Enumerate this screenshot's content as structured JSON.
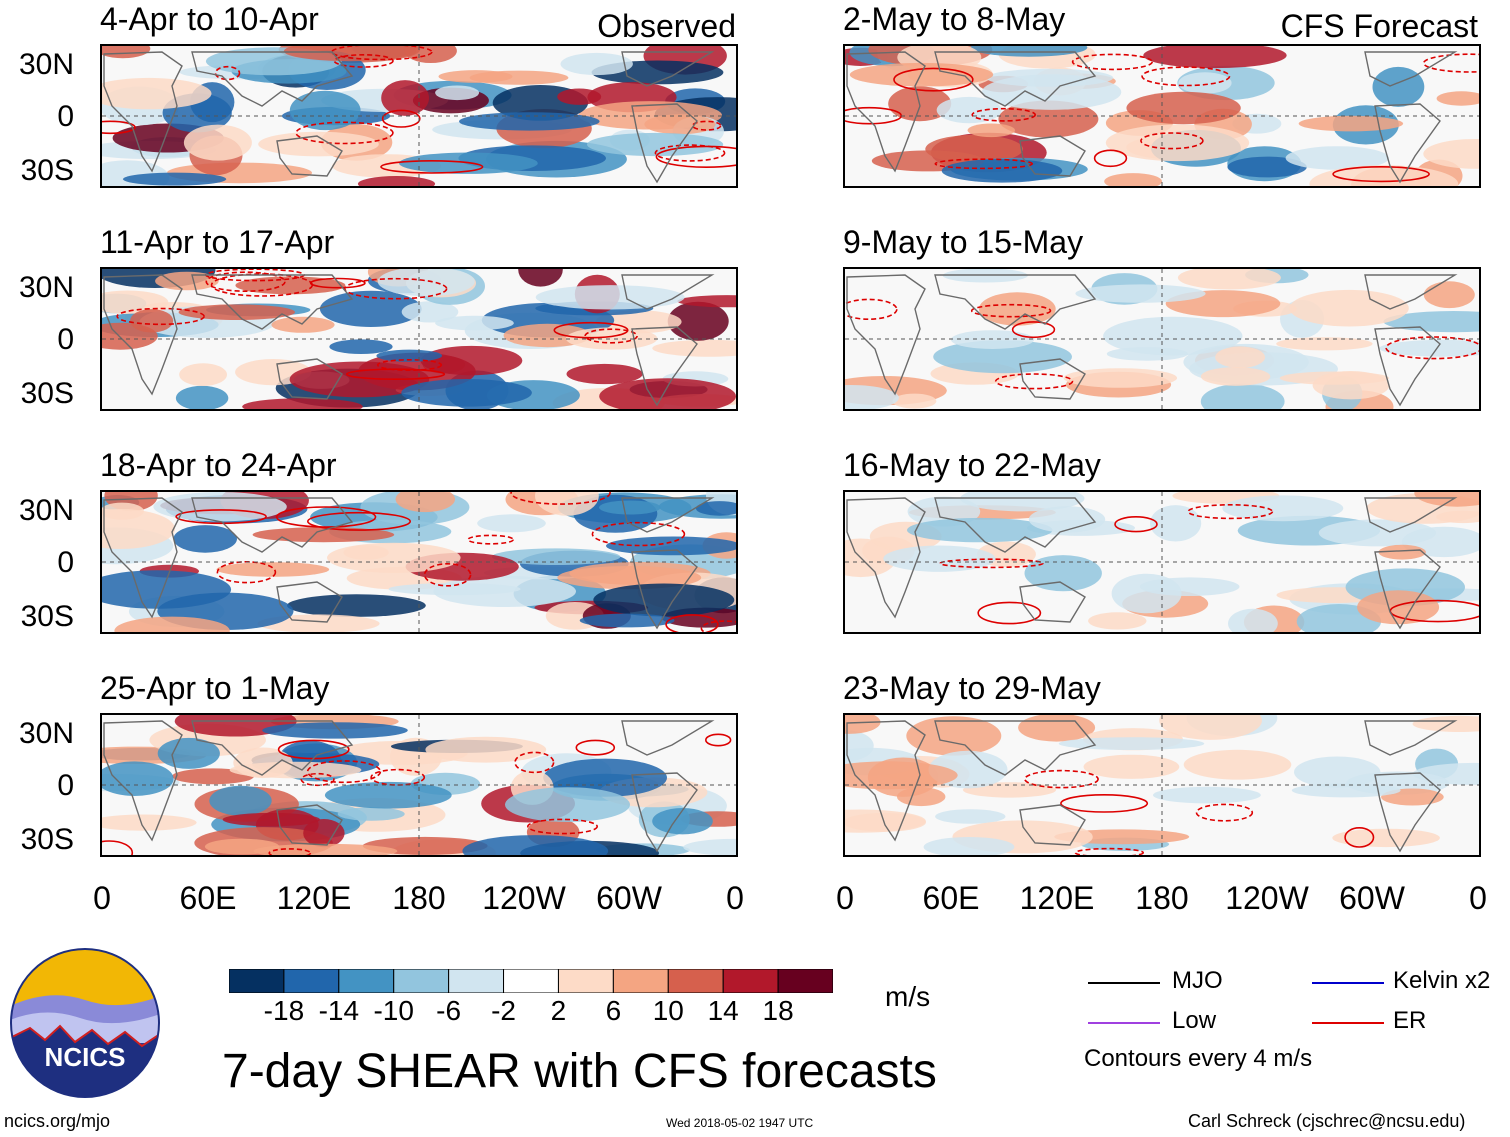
{
  "chart_data": {
    "type": "heatmap",
    "title": "7-day SHEAR with CFS forecasts",
    "units": "m/s",
    "column_labels": [
      "Observed",
      "CFS Forecast"
    ],
    "observed_periods": [
      "4-Apr to 10-Apr",
      "11-Apr to 17-Apr",
      "18-Apr to 24-Apr",
      "25-Apr to 1-May"
    ],
    "forecast_periods": [
      "2-May to 8-May",
      "9-May to 15-May",
      "16-May to 22-May",
      "23-May to 29-May"
    ],
    "lat_ticks": [
      "30N",
      "0",
      "30S"
    ],
    "lon_ticks": [
      "0",
      "60E",
      "120E",
      "180",
      "120W",
      "60W",
      "0"
    ],
    "colorbar": {
      "ticks": [
        "-18",
        "-14",
        "-10",
        "-6",
        "-2",
        "2",
        "6",
        "10",
        "14",
        "18"
      ],
      "colors": [
        "#053061",
        "#2166ac",
        "#4393c3",
        "#92c5de",
        "#d1e5f0",
        "#ffffff",
        "#fddbc7",
        "#f4a582",
        "#d6604d",
        "#b2182b",
        "#67001f"
      ]
    },
    "legend": [
      {
        "label": "MJO",
        "color": "#000000"
      },
      {
        "label": "Kelvin x2",
        "color": "#0000cc"
      },
      {
        "label": "Low",
        "color": "#a040e0"
      },
      {
        "label": "ER",
        "color": "#dd0000"
      }
    ],
    "contour_note": "Contours every 4 m/s"
  },
  "footer": {
    "logo_text": "NCICS",
    "url": "ncics.org/mjo",
    "timestamp": "Wed 2018-05-02 1947 UTC",
    "credit": "Carl Schreck (cjschrec@ncsu.edu)"
  }
}
